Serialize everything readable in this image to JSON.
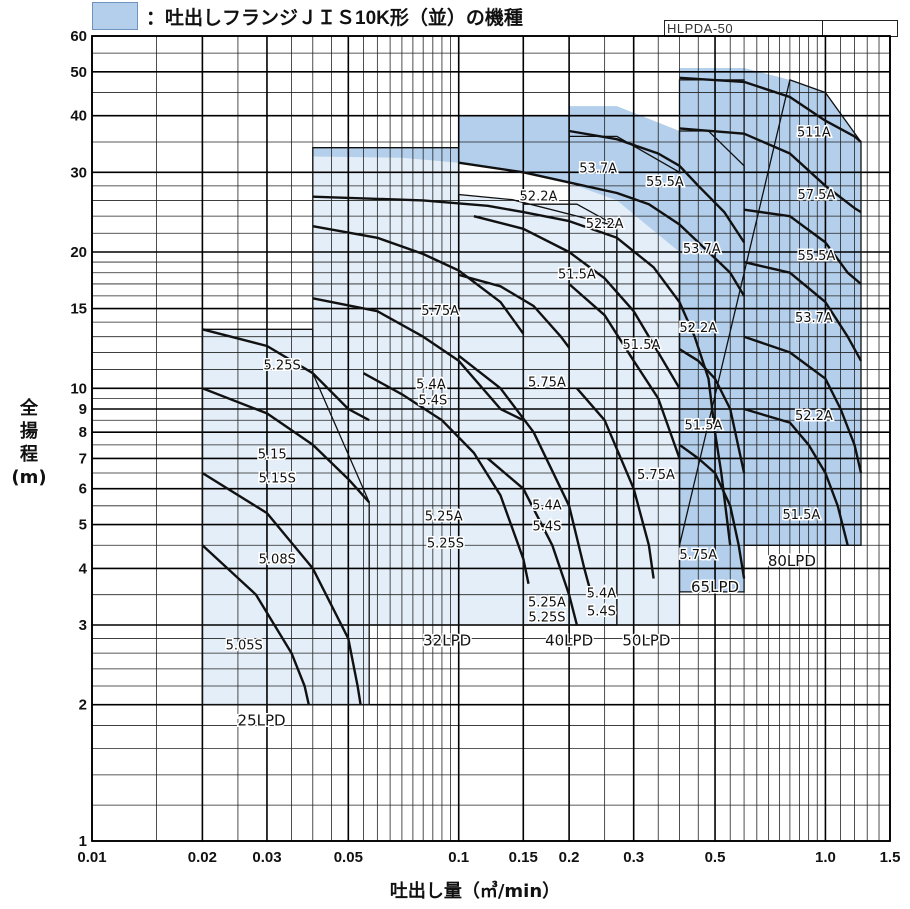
{
  "legend": {
    "text": "：吐出しフランジＪＩＳ10K形（並）の機種",
    "color": "#b4cfeb"
  },
  "model_code": "HLPDA-50",
  "chart_data": {
    "type": "area",
    "x_scale": "log",
    "y_scale": "log",
    "xlim": [
      0.01,
      1.5
    ],
    "ylim": [
      1,
      60
    ],
    "x_ticks": [
      0.01,
      0.02,
      0.03,
      0.05,
      0.1,
      0.15,
      0.2,
      0.3,
      0.5,
      1.0,
      1.5
    ],
    "x_tick_labels": [
      "0.01",
      "0.02",
      "0.03",
      "0.05",
      "0.1",
      "0.15",
      "0.2",
      "0.3",
      "0.5",
      "1.0",
      "1.5"
    ],
    "y_ticks": [
      1,
      2,
      3,
      4,
      5,
      6,
      7,
      8,
      9,
      10,
      15,
      20,
      30,
      40,
      50,
      60
    ],
    "y_tick_labels": [
      "1",
      "2",
      "3",
      "4",
      "5",
      "6",
      "7",
      "8",
      "9",
      "10",
      "15",
      "20",
      "30",
      "40",
      "50",
      "60"
    ],
    "xlabel": "吐出し量（㎥/min）",
    "ylabel": [
      "全",
      "揚",
      "程",
      "(m)"
    ],
    "grid": true,
    "colors": {
      "light": "#e4eef8",
      "dark": "#b4cfeb",
      "curve": "#111111",
      "grid": "#222222"
    },
    "regions": [
      {
        "name": "25LPD",
        "label_pos": [
          0.029,
          1.8
        ],
        "polygon": [
          [
            0.02,
            2
          ],
          [
            0.02,
            13.5
          ],
          [
            0.04,
            13.5
          ],
          [
            0.04,
            10.8
          ],
          [
            0.057,
            5.6
          ],
          [
            0.057,
            2
          ]
        ]
      },
      {
        "name": "32LPD",
        "label_pos": [
          0.093,
          2.7
        ],
        "polygon": [
          [
            0.04,
            3
          ],
          [
            0.04,
            34
          ],
          [
            0.1,
            34
          ],
          [
            0.1,
            26.8
          ],
          [
            0.14,
            26.1
          ],
          [
            0.27,
            22.8
          ],
          [
            0.27,
            3
          ]
        ]
      },
      {
        "name": "40LPD",
        "label_pos": [
          0.2,
          2.7
        ],
        "polygon": [
          [
            0.15,
            3
          ],
          [
            0.15,
            25.5
          ],
          [
            0.21,
            25.5
          ],
          [
            0.27,
            22.8
          ],
          [
            0.27,
            3
          ]
        ]
      },
      {
        "name": "50LPD",
        "label_pos": [
          0.325,
          2.7
        ],
        "polygon": [
          [
            0.2,
            3
          ],
          [
            0.2,
            36
          ],
          [
            0.27,
            36
          ],
          [
            0.4,
            30
          ],
          [
            0.4,
            3
          ]
        ]
      },
      {
        "name": "65LPD",
        "label_pos": [
          0.5,
          3.55
        ],
        "polygon": [
          [
            0.4,
            3.55
          ],
          [
            0.4,
            37
          ],
          [
            0.48,
            37
          ],
          [
            0.6,
            31
          ],
          [
            0.6,
            3.55
          ]
        ]
      },
      {
        "name": "80LPD",
        "label_pos": [
          0.81,
          4.05
        ],
        "polygon": [
          [
            0.4,
            4.5
          ],
          [
            0.4,
            48
          ],
          [
            0.6,
            48
          ],
          [
            0.6,
            4.5
          ],
          [
            1.25,
            4.5
          ],
          [
            1.25,
            35
          ],
          [
            1.0,
            45
          ],
          [
            0.8,
            48
          ]
        ]
      }
    ],
    "jis_regions": [
      {
        "polygon": [
          [
            0.04,
            28
          ],
          [
            0.04,
            34
          ],
          [
            0.1,
            34
          ],
          [
            0.1,
            40
          ],
          [
            0.2,
            40
          ],
          [
            0.2,
            42
          ],
          [
            0.27,
            42
          ],
          [
            0.4,
            37
          ],
          [
            0.4,
            51
          ],
          [
            0.6,
            51
          ],
          [
            0.8,
            48
          ],
          [
            1.0,
            45
          ],
          [
            1.25,
            35
          ],
          [
            1.25,
            4.5
          ],
          [
            0.6,
            4.5
          ],
          [
            0.6,
            3.55
          ],
          [
            0.4,
            3.55
          ],
          [
            0.4,
            20
          ],
          [
            0.27,
            26
          ],
          [
            0.2,
            28.4
          ],
          [
            0.15,
            30
          ],
          [
            0.1,
            31.5
          ],
          [
            0.07,
            32.3
          ],
          [
            0.04,
            32.5
          ],
          [
            0.04,
            28
          ]
        ]
      }
    ],
    "curves": [
      {
        "name": "5.25S",
        "points": [
          [
            0.02,
            13.5
          ],
          [
            0.03,
            12.4
          ],
          [
            0.04,
            10.8
          ],
          [
            0.05,
            9.0
          ],
          [
            0.057,
            8.5
          ]
        ],
        "label_pos": [
          0.033,
          11.0
        ]
      },
      {
        "name": "5.15",
        "points": [
          [
            0.02,
            10.0
          ],
          [
            0.03,
            8.8
          ],
          [
            0.04,
            7.5
          ],
          [
            0.05,
            6.3
          ],
          [
            0.057,
            5.6
          ]
        ],
        "label_pos": [
          0.031,
          7.0
        ]
      },
      {
        "name": "5.15S",
        "points": [],
        "label_pos": [
          0.032,
          6.2
        ]
      },
      {
        "name": "5.08S",
        "points": [
          [
            0.02,
            6.5
          ],
          [
            0.03,
            5.3
          ],
          [
            0.04,
            4.0
          ],
          [
            0.05,
            2.8
          ],
          [
            0.053,
            2.2
          ],
          [
            0.054,
            2.0
          ]
        ],
        "label_pos": [
          0.032,
          4.1
        ]
      },
      {
        "name": "5.05S",
        "points": [
          [
            0.02,
            4.5
          ],
          [
            0.028,
            3.5
          ],
          [
            0.035,
            2.6
          ],
          [
            0.038,
            2.2
          ],
          [
            0.039,
            2.0
          ]
        ],
        "label_pos": [
          0.026,
          2.65
        ]
      },
      {
        "name": "5.75A",
        "points": [
          [
            0.04,
            22.8
          ],
          [
            0.06,
            21.5
          ],
          [
            0.08,
            19.8
          ],
          [
            0.1,
            18.2
          ],
          [
            0.13,
            15.5
          ],
          [
            0.15,
            13.2
          ]
        ],
        "label_pos": [
          0.089,
          14.5
        ]
      },
      {
        "name": "5.4A",
        "points": [
          [
            0.04,
            15.8
          ],
          [
            0.06,
            14.8
          ],
          [
            0.08,
            13.0
          ],
          [
            0.1,
            11.5
          ],
          [
            0.13,
            9.0
          ],
          [
            0.15,
            8.5
          ]
        ],
        "label_pos": [
          0.084,
          10.0
        ]
      },
      {
        "name": "5.4S",
        "points": [],
        "label_pos": [
          0.085,
          9.2
        ]
      },
      {
        "name": "5.25A",
        "points": [
          [
            0.055,
            10.8
          ],
          [
            0.07,
            9.7
          ],
          [
            0.09,
            8.5
          ],
          [
            0.11,
            7.2
          ],
          [
            0.13,
            5.8
          ],
          [
            0.15,
            4.2
          ],
          [
            0.155,
            3.7
          ]
        ],
        "label_pos": [
          0.091,
          5.1
        ]
      },
      {
        "name": "5.25S",
        "points": [],
        "label_pos": [
          0.092,
          4.45
        ]
      },
      {
        "name": "5.75A",
        "points": [
          [
            0.1,
            17.8
          ],
          [
            0.13,
            16.8
          ],
          [
            0.16,
            15.2
          ],
          [
            0.19,
            13.0
          ],
          [
            0.2,
            12.3
          ]
        ],
        "label_pos": [
          0.174,
          10.1
        ]
      },
      {
        "name": "5.4A",
        "points": [
          [
            0.1,
            11.8
          ],
          [
            0.13,
            10.0
          ],
          [
            0.16,
            8.0
          ],
          [
            0.2,
            5.5
          ],
          [
            0.22,
            4.0
          ],
          [
            0.23,
            3.5
          ]
        ],
        "label_pos": [
          0.174,
          5.4
        ]
      },
      {
        "name": "5.4S",
        "points": [],
        "label_pos": [
          0.174,
          4.85
        ]
      },
      {
        "name": "5.25A",
        "points": [
          [
            0.12,
            7.0
          ],
          [
            0.15,
            6.0
          ],
          [
            0.18,
            4.5
          ],
          [
            0.2,
            3.5
          ],
          [
            0.21,
            3.0
          ]
        ],
        "label_pos": [
          0.174,
          3.3
        ]
      },
      {
        "name": "5.25S",
        "points": [],
        "label_pos": [
          0.174,
          3.05
        ]
      },
      {
        "name": "51.5A",
        "points": [
          [
            0.11,
            24.0
          ],
          [
            0.15,
            22.5
          ],
          [
            0.2,
            20.0
          ],
          [
            0.25,
            17.5
          ],
          [
            0.3,
            14.8
          ],
          [
            0.35,
            12.0
          ],
          [
            0.4,
            10.0
          ]
        ],
        "label_pos": [
          0.21,
          17.5
        ]
      },
      {
        "name": "5.75A",
        "points": [
          [
            0.2,
            17.0
          ],
          [
            0.25,
            14.5
          ],
          [
            0.3,
            11.5
          ],
          [
            0.35,
            9.5
          ],
          [
            0.4,
            7.0
          ]
        ],
        "label_pos": [
          0.345,
          6.3
        ]
      },
      {
        "name": "5.4A",
        "points": [
          [
            0.21,
            10.0
          ],
          [
            0.25,
            8.5
          ],
          [
            0.3,
            6.0
          ],
          [
            0.33,
            4.5
          ],
          [
            0.34,
            3.8
          ]
        ],
        "label_pos": [
          0.245,
          3.45
        ]
      },
      {
        "name": "5.4S",
        "points": [],
        "label_pos": [
          0.245,
          3.15
        ]
      },
      {
        "name": "51.5A",
        "points": [],
        "label_pos": [
          0.315,
          12.2
        ]
      },
      {
        "name": "52.2A",
        "points": [
          [
            0.04,
            26.5
          ],
          [
            0.08,
            26.0
          ],
          [
            0.12,
            25.3
          ],
          [
            0.15,
            24.5
          ],
          [
            0.2,
            23.4
          ],
          [
            0.27,
            21.5
          ],
          [
            0.34,
            18.5
          ],
          [
            0.4,
            15.5
          ],
          [
            0.44,
            13.0
          ],
          [
            0.48,
            10.5
          ],
          [
            0.5,
            8.0
          ],
          [
            0.52,
            6.5
          ],
          [
            0.55,
            4.5
          ]
        ],
        "label_pos": [
          0.165,
          26.0
        ]
      },
      {
        "name": "53.7A",
        "points": [
          [
            0.1,
            31.5
          ],
          [
            0.15,
            30.0
          ],
          [
            0.2,
            28.5
          ],
          [
            0.27,
            27.0
          ],
          [
            0.33,
            25.5
          ],
          [
            0.4,
            23.0
          ],
          [
            0.48,
            20.0
          ],
          [
            0.55,
            18.0
          ],
          [
            0.6,
            16.0
          ]
        ],
        "label_pos": [
          0.24,
          30.0
        ]
      },
      {
        "name": "52.2A",
        "points": [],
        "label_pos": [
          0.25,
          22.6
        ]
      },
      {
        "name": "55.5A",
        "points": [
          [
            0.2,
            37.0
          ],
          [
            0.27,
            35.5
          ],
          [
            0.35,
            33.0
          ],
          [
            0.4,
            31.0
          ],
          [
            0.45,
            28.0
          ],
          [
            0.53,
            24.5
          ],
          [
            0.6,
            21.0
          ]
        ],
        "label_pos": [
          0.365,
          28.0
        ]
      },
      {
        "name": "53.7A",
        "points": [],
        "label_pos": [
          0.46,
          19.9
        ]
      },
      {
        "name": "52.2A",
        "points": [],
        "label_pos": [
          0.45,
          13.3
        ]
      },
      {
        "name": "51.5A",
        "points": [
          [
            0.4,
            12.2
          ],
          [
            0.45,
            11.5
          ],
          [
            0.5,
            10.5
          ],
          [
            0.55,
            9.0
          ],
          [
            0.6,
            6.5
          ]
        ],
        "label_pos": [
          0.465,
          8.1
        ]
      },
      {
        "name": "5.75A",
        "points": [
          [
            0.4,
            7.5
          ],
          [
            0.45,
            7.0
          ],
          [
            0.5,
            6.5
          ],
          [
            0.55,
            5.5
          ],
          [
            0.58,
            4.5
          ],
          [
            0.6,
            3.8
          ]
        ],
        "label_pos": [
          0.45,
          4.2
        ]
      },
      {
        "name": "511A",
        "points": [
          [
            0.4,
            48.5
          ],
          [
            0.6,
            47.5
          ],
          [
            0.8,
            44.0
          ],
          [
            1.0,
            39.0
          ],
          [
            1.2,
            36.0
          ],
          [
            1.25,
            35.0
          ]
        ],
        "label_pos": [
          0.93,
          36.0
        ]
      },
      {
        "name": "57.5A",
        "points": [
          [
            0.4,
            37.5
          ],
          [
            0.6,
            36.5
          ],
          [
            0.8,
            33.0
          ],
          [
            1.0,
            28.0
          ],
          [
            1.2,
            25.0
          ],
          [
            1.25,
            24.5
          ]
        ],
        "label_pos": [
          0.945,
          26.2
        ]
      },
      {
        "name": "55.5A",
        "points": [
          [
            0.6,
            24.8
          ],
          [
            0.8,
            24.0
          ],
          [
            1.0,
            21.0
          ],
          [
            1.15,
            18.0
          ],
          [
            1.25,
            17.0
          ]
        ],
        "label_pos": [
          0.945,
          19.2
        ]
      },
      {
        "name": "53.7A",
        "points": [
          [
            0.6,
            19.0
          ],
          [
            0.8,
            18.0
          ],
          [
            1.0,
            15.5
          ],
          [
            1.15,
            13.0
          ],
          [
            1.25,
            11.5
          ]
        ],
        "label_pos": [
          0.93,
          14.0
        ]
      },
      {
        "name": "52.2A",
        "points": [
          [
            0.6,
            13.0
          ],
          [
            0.8,
            12.0
          ],
          [
            1.0,
            10.5
          ],
          [
            1.1,
            9.0
          ],
          [
            1.2,
            7.5
          ],
          [
            1.25,
            6.5
          ]
        ],
        "label_pos": [
          0.93,
          8.5
        ]
      },
      {
        "name": "51.5A",
        "points": [
          [
            0.6,
            9.0
          ],
          [
            0.8,
            8.4
          ],
          [
            0.9,
            7.5
          ],
          [
            1.0,
            6.5
          ],
          [
            1.08,
            5.5
          ],
          [
            1.15,
            4.5
          ]
        ],
        "label_pos": [
          0.86,
          5.15
        ]
      }
    ]
  }
}
